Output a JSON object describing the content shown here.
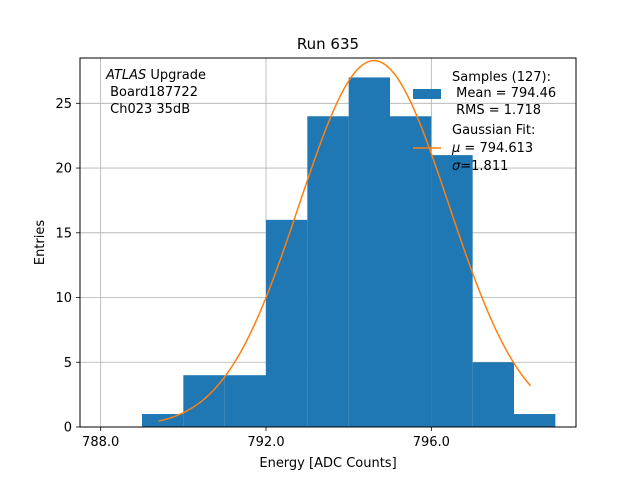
{
  "chart_data": {
    "type": "bar",
    "title": "Run 635",
    "xlabel": "Energy [ADC Counts]",
    "ylabel": "Entries",
    "xlim": [
      787.5,
      799.5
    ],
    "ylim": [
      0,
      28.5
    ],
    "xticks": [
      788.0,
      792.0,
      796.0
    ],
    "xtick_labels": [
      "788.0",
      "792.0",
      "796.0"
    ],
    "yticks": [
      0,
      5,
      10,
      15,
      20,
      25
    ],
    "ytick_labels": [
      "0",
      "5",
      "10",
      "15",
      "20",
      "25"
    ],
    "grid": true,
    "legend_position": "top-right",
    "histogram": {
      "bin_edges": [
        789,
        790,
        791,
        792,
        793,
        794,
        795,
        796,
        797,
        798,
        799
      ],
      "counts": [
        1,
        4,
        4,
        16,
        24,
        27,
        24,
        21,
        5,
        1
      ],
      "color": "#1f77b4"
    },
    "fit": {
      "mu": 794.613,
      "sigma": 1.811,
      "amplitude": 28.3,
      "x_start": 789.4,
      "x_end": 798.4,
      "color": "#ff7f0e"
    },
    "annotation": {
      "line1_italic": "ATLAS",
      "line1_rest": " Upgrade",
      "line2": " Board187722",
      "line3": " Ch023 35dB"
    },
    "legend": {
      "samples_title": "Samples (127):",
      "samples_mean": " Mean = 794.46",
      "samples_rms": " RMS = 1.718",
      "fit_title": "Gaussian Fit:",
      "fit_mu_symbol": "μ",
      "fit_mu_value": " = 794.613",
      "fit_sigma_symbol": "σ",
      "fit_sigma_value": "=1.811"
    }
  }
}
